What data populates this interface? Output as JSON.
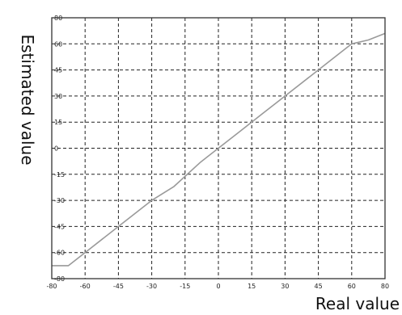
{
  "chart_data": {
    "type": "line",
    "title": "",
    "xlabel": "Real value",
    "ylabel": "Estimated value",
    "xlim": [
      -80,
      80
    ],
    "ylim": [
      -80,
      80
    ],
    "grid": true,
    "x_ticks": [
      -80,
      -60,
      -45,
      -30,
      -15,
      0,
      15,
      30,
      45,
      60,
      80
    ],
    "x_tick_labels": [
      "-80",
      "-60",
      "-45",
      "-30",
      "-15",
      "0",
      "15",
      "30",
      "45",
      "60",
      "80"
    ],
    "y_ticks": [
      -80,
      -60,
      -45,
      -30,
      -15,
      0,
      15,
      30,
      45,
      60,
      80
    ],
    "y_tick_labels": [
      "-80",
      "-60",
      "-45",
      "-30",
      "-15",
      "0",
      "15",
      "30",
      "45",
      "60",
      "80"
    ],
    "colors": {
      "line": "#9a9a9a",
      "grid": "#222222",
      "frame": "#333333"
    },
    "series": [
      {
        "x": [
          -80,
          -70,
          -60,
          -45,
          -30,
          -20,
          -8,
          0,
          10,
          20,
          30,
          45,
          52,
          60,
          70,
          80
        ],
        "y": [
          -70,
          -70,
          -60,
          -45,
          -30,
          -22,
          -8,
          0,
          10,
          20,
          30,
          45,
          52,
          60,
          63,
          68
        ]
      }
    ]
  }
}
